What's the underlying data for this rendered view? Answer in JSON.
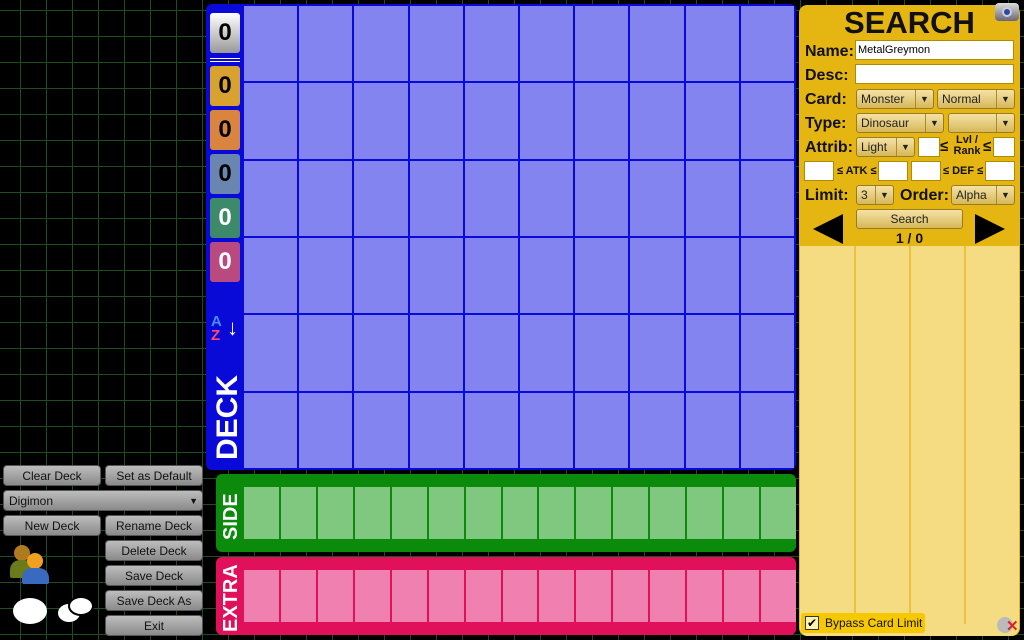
{
  "left_panel": {
    "clear_deck": "Clear Deck",
    "set_default": "Set as Default",
    "deck_select": "Digimon",
    "new_deck": "New Deck",
    "rename_deck": "Rename Deck",
    "delete_deck": "Delete Deck",
    "save_deck": "Save Deck",
    "save_deck_as": "Save Deck As",
    "exit": "Exit"
  },
  "deck": {
    "label": "DECK",
    "counters": [
      "0",
      "0",
      "0",
      "0",
      "0",
      "0"
    ],
    "sort_icon": "a-z-sort-icon",
    "rows": 6,
    "cols": 10
  },
  "side": {
    "label": "SIDE",
    "cells": 15
  },
  "extra": {
    "label": "EXTRA",
    "cells": 15
  },
  "search": {
    "title": "SEARCH",
    "name_label": "Name:",
    "name_value": "MetalGreymon",
    "desc_label": "Desc:",
    "desc_value": "",
    "card_label": "Card:",
    "card_value": "Monster",
    "card_sub": "Normal",
    "type_label": "Type:",
    "type_value": "Dinosaur",
    "type_sub": "",
    "attrib_label": "Attrib:",
    "attrib_value": "Light",
    "lvl_label": "Lvl / Rank",
    "le": "≤",
    "atk_label": "≤ ATK ≤",
    "def_label": "≤ DEF ≤",
    "limit_label": "Limit:",
    "limit_value": "3",
    "order_label": "Order:",
    "order_value": "Alpha",
    "search_button": "Search",
    "page": "1 / 0",
    "bypass_label": "Bypass Card Limit",
    "bypass_checked": true
  },
  "colors": {
    "deck": "#0a0ad8",
    "side": "#0b8a0b",
    "extra": "#e0105a",
    "search": "#e5b512"
  }
}
